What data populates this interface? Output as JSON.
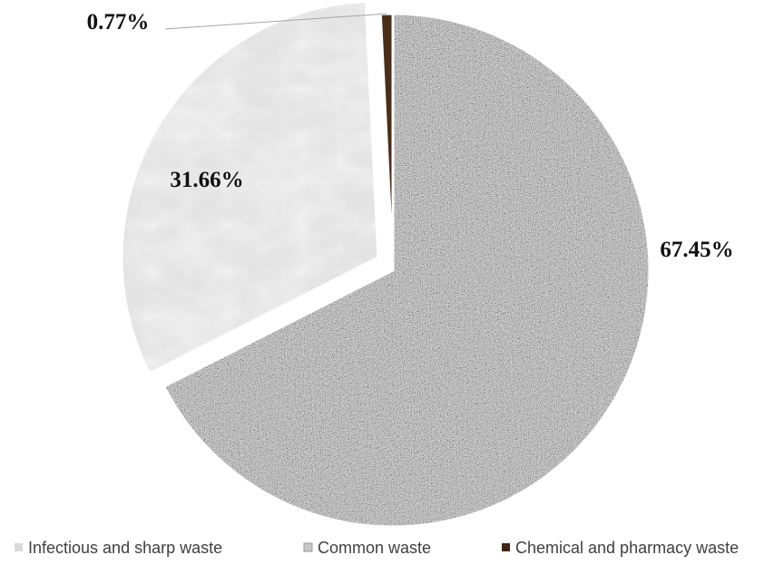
{
  "chart_data": {
    "type": "pie",
    "title": "",
    "slices": [
      {
        "name": "Infectious and sharp waste",
        "value": 67.45,
        "label": "67.45%",
        "color": "#9a9a9a"
      },
      {
        "name": "Common waste",
        "value": 31.66,
        "label": "31.66%",
        "color": "#e4e4e4"
      },
      {
        "name": "Chemical and pharmacy waste",
        "value": 0.77,
        "label": "0.77%",
        "color": "#4a2e1a"
      }
    ],
    "legend_position": "bottom",
    "exploded_slice": "Common waste"
  }
}
